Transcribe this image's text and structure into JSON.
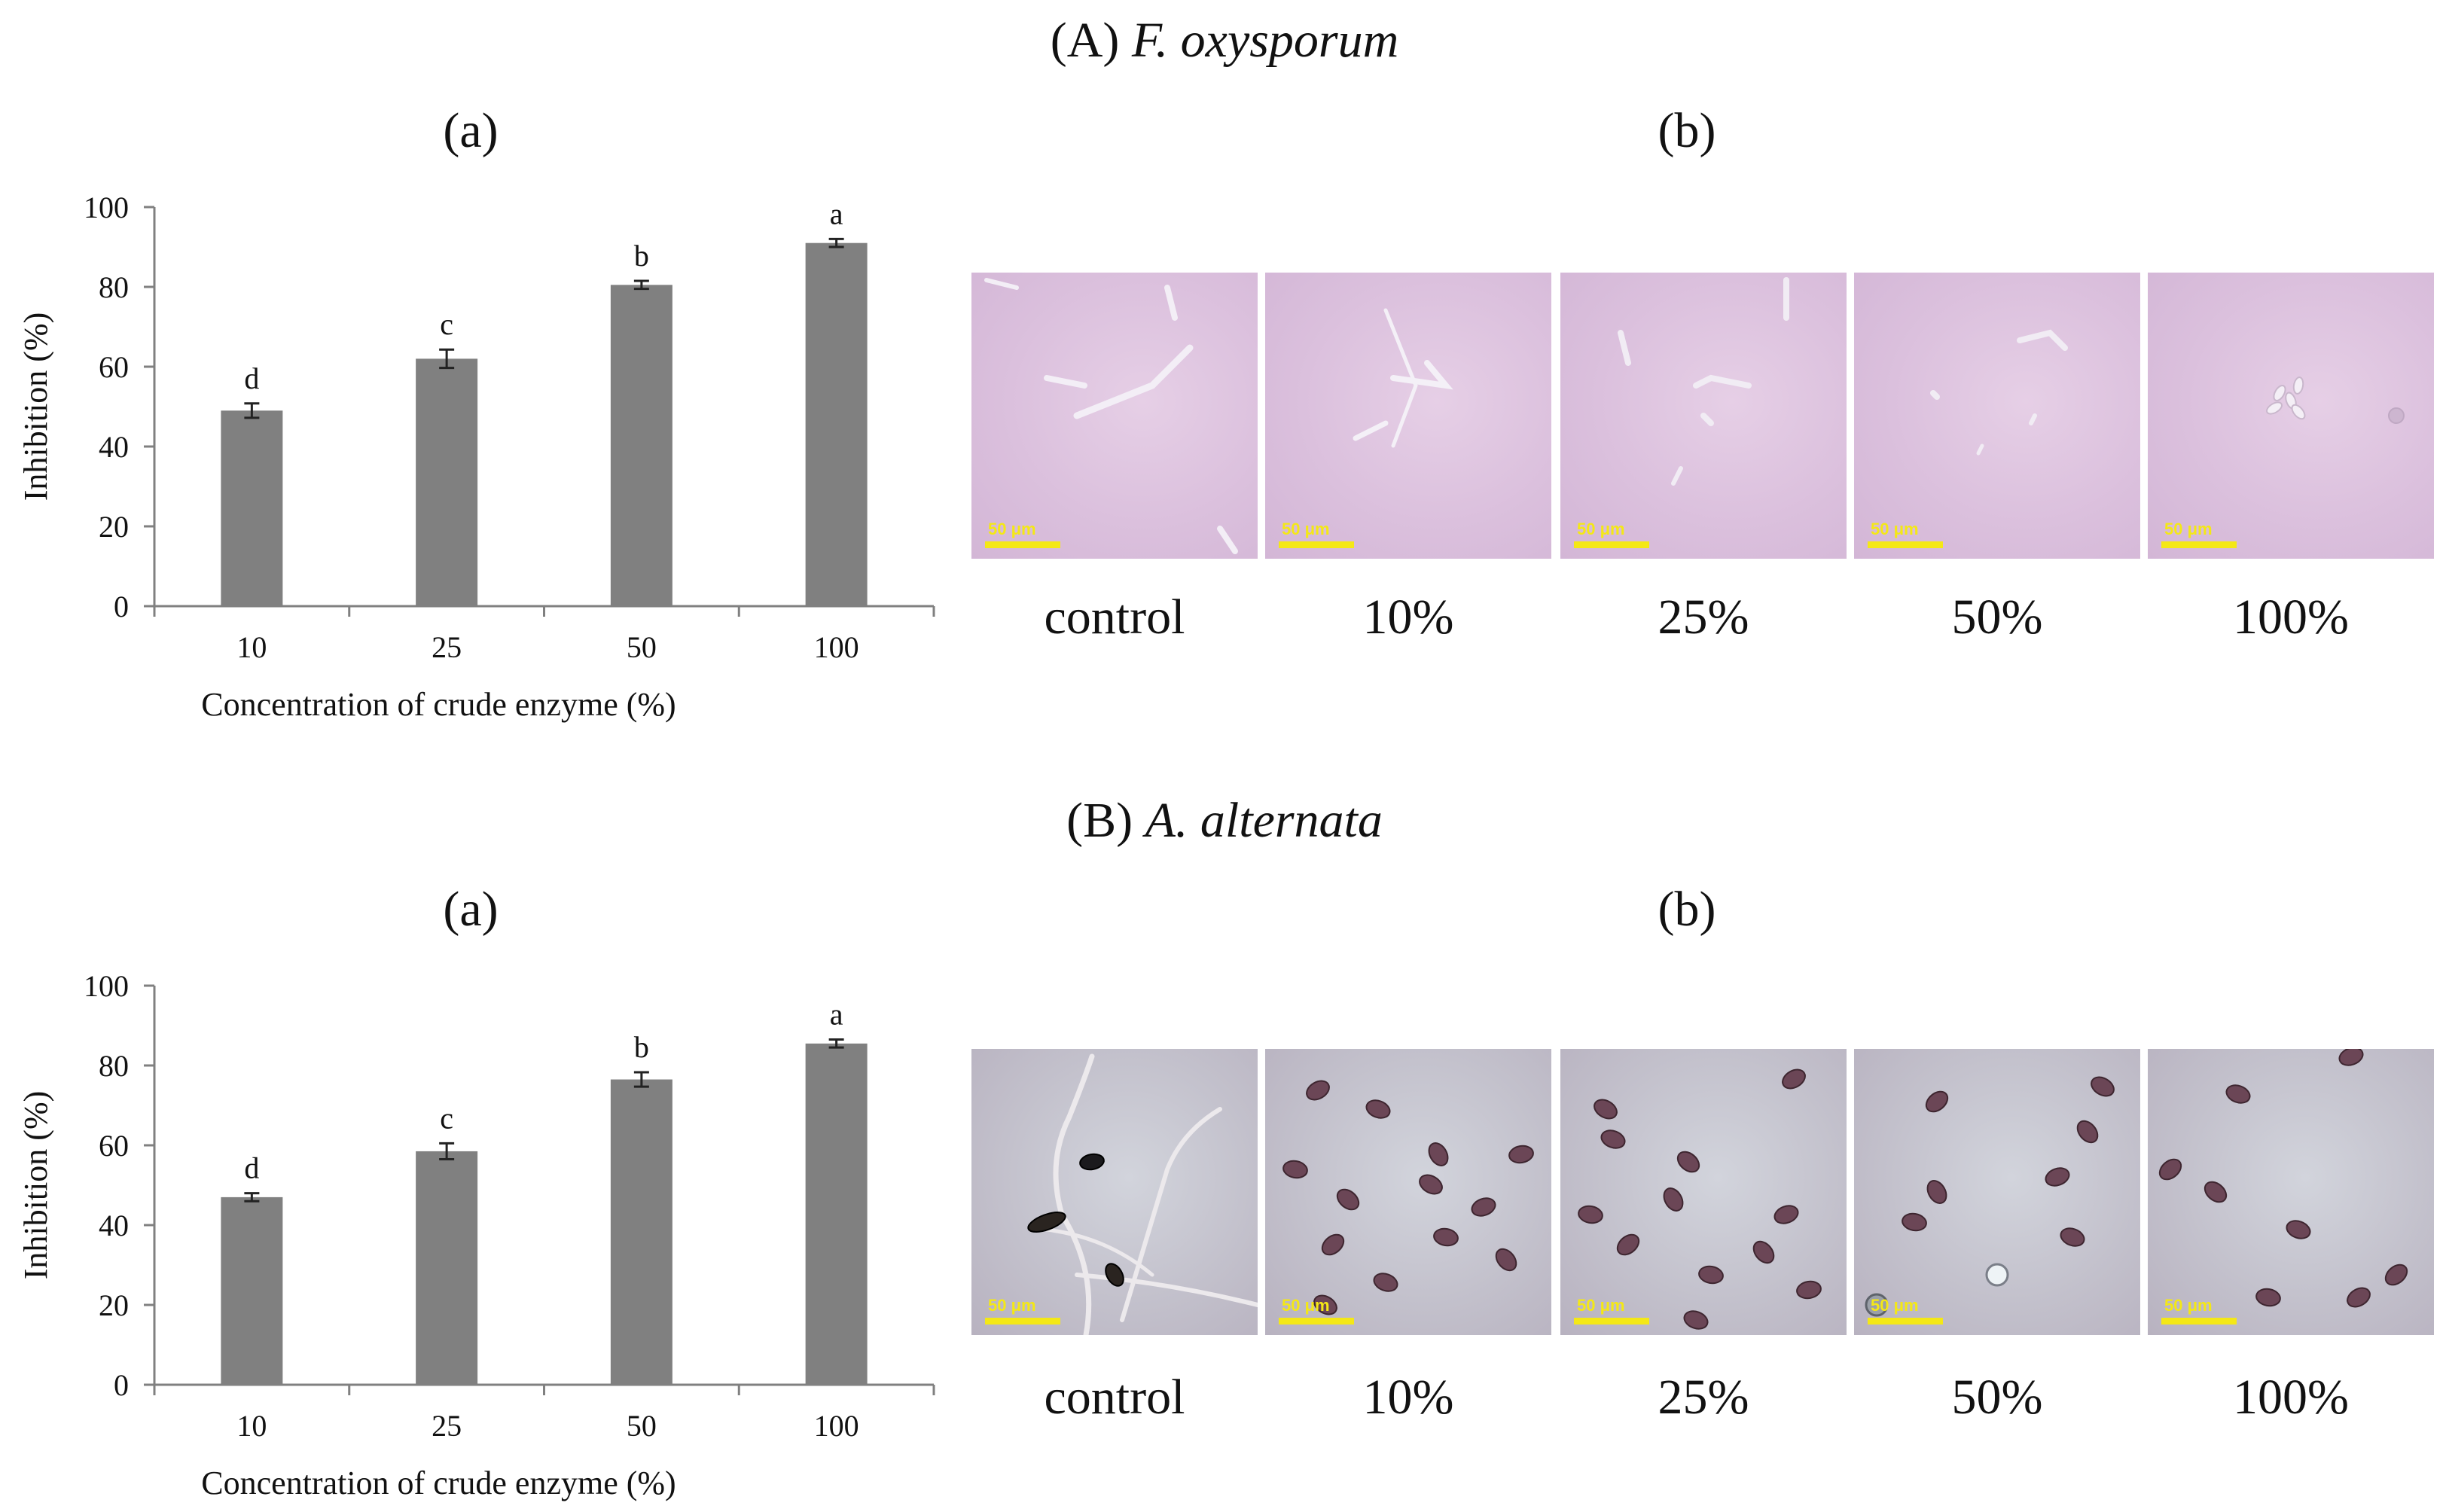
{
  "figure": {
    "sectionA": {
      "prefix": "(A)",
      "organism": "F. oxysporum"
    },
    "sectionB": {
      "prefix": "(B)",
      "organism": "A. alternata"
    },
    "panel_a_label": "(a)",
    "panel_b_label": "(b)",
    "scale_bar_label": "50 μm",
    "micrograph_captions": [
      "control",
      "10%",
      "25%",
      "50%",
      "100%"
    ],
    "colors": {
      "bar": "#808080",
      "axis": "#808080",
      "scale_bar": "#f4e816"
    }
  },
  "chart_data": [
    {
      "type": "bar",
      "title": "",
      "xlabel": "Concentration of crude enzyme (%)",
      "ylabel": "Inhibition (%)",
      "categories": [
        "10",
        "25",
        "50",
        "100"
      ],
      "values": [
        49,
        62,
        80.5,
        91
      ],
      "errors": [
        1.8,
        2.3,
        1.0,
        1.0
      ],
      "significance": [
        "d",
        "c",
        "b",
        "a"
      ],
      "ylim": [
        0,
        100
      ],
      "yticks": [
        0,
        20,
        40,
        60,
        80,
        100
      ],
      "grid": false
    },
    {
      "type": "bar",
      "title": "",
      "xlabel": "Concentration of crude enzyme (%)",
      "ylabel": "Inhibition (%)",
      "categories": [
        "10",
        "25",
        "50",
        "100"
      ],
      "values": [
        47,
        58.5,
        76.5,
        85.5
      ],
      "errors": [
        1.0,
        2.0,
        1.8,
        1.0
      ],
      "significance": [
        "d",
        "c",
        "b",
        "a"
      ],
      "ylim": [
        0,
        100
      ],
      "yticks": [
        0,
        20,
        40,
        60,
        80,
        100
      ],
      "grid": false
    }
  ]
}
